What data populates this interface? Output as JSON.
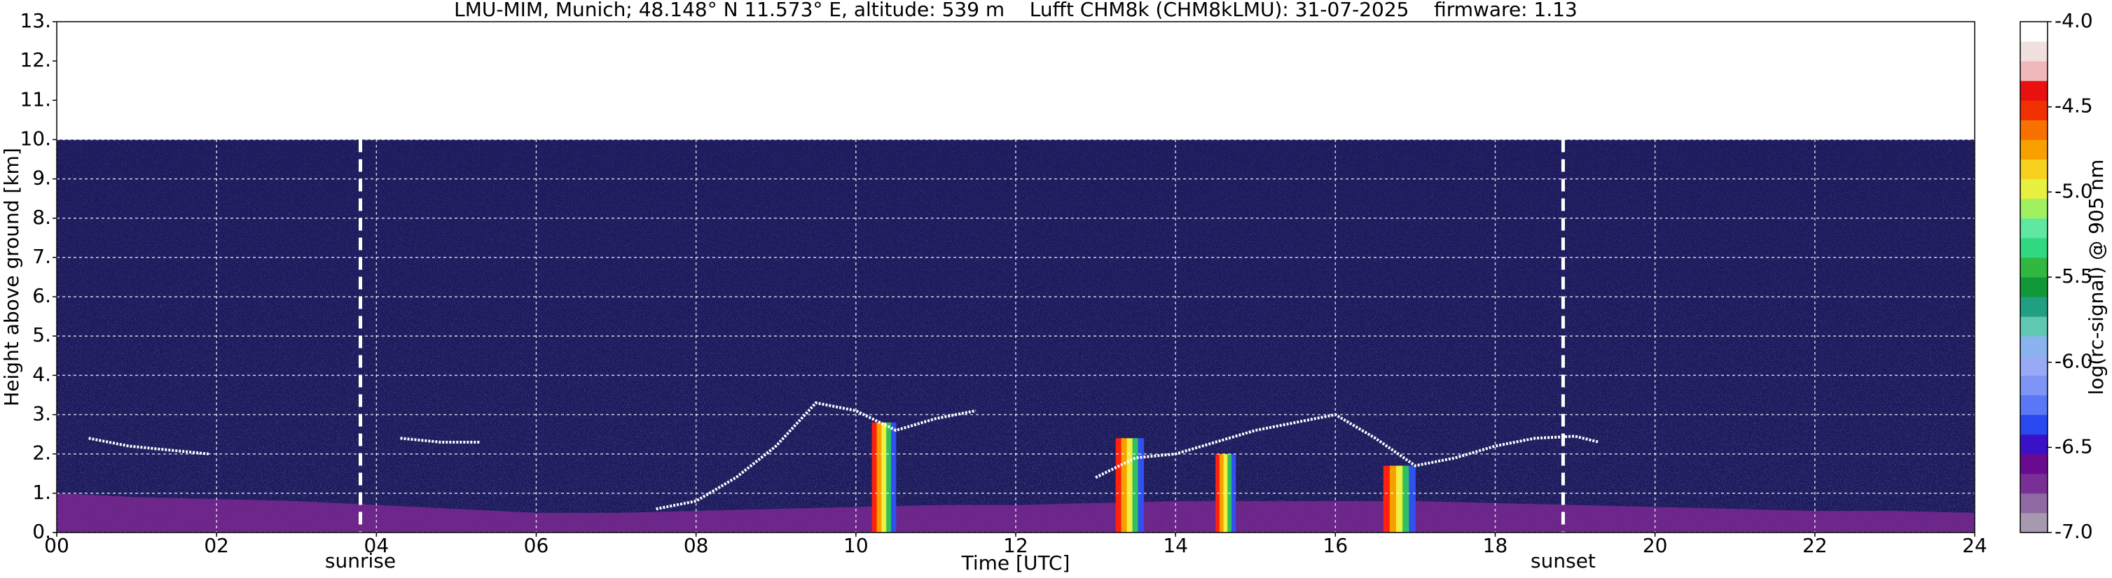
{
  "chart_data": {
    "type": "heatmap",
    "title": "LMU-MIM, Munich; 48.148° N 11.573° E, altitude: 539 m    Lufft CHM8k (CHM8kLMU): 31-07-2025    firmware: 1.13",
    "xlabel": "Time [UTC]",
    "ylabel": "Height above ground [km]",
    "colorbar_label": "log(rc-signal) @ 905 nm",
    "xlim": [
      0,
      24
    ],
    "xticks": [
      {
        "value": 0,
        "label": "00"
      },
      {
        "value": 2,
        "label": "02"
      },
      {
        "value": 4,
        "label": "04"
      },
      {
        "value": 6,
        "label": "06"
      },
      {
        "value": 8,
        "label": "08"
      },
      {
        "value": 10,
        "label": "10"
      },
      {
        "value": 12,
        "label": "12"
      },
      {
        "value": 14,
        "label": "14"
      },
      {
        "value": 16,
        "label": "16"
      },
      {
        "value": 18,
        "label": "18"
      },
      {
        "value": 20,
        "label": "20"
      },
      {
        "value": 22,
        "label": "22"
      },
      {
        "value": 24,
        "label": "24"
      }
    ],
    "ylim": [
      0,
      13
    ],
    "yticks": [
      {
        "value": 0,
        "label": "0."
      },
      {
        "value": 1,
        "label": "1."
      },
      {
        "value": 2,
        "label": "2."
      },
      {
        "value": 3,
        "label": "3."
      },
      {
        "value": 4,
        "label": "4."
      },
      {
        "value": 5,
        "label": "5."
      },
      {
        "value": 6,
        "label": "6."
      },
      {
        "value": 7,
        "label": "7."
      },
      {
        "value": 8,
        "label": "8."
      },
      {
        "value": 9,
        "label": "9."
      },
      {
        "value": 10,
        "label": "10."
      },
      {
        "value": 11,
        "label": "11."
      },
      {
        "value": 12,
        "label": "12."
      },
      {
        "value": 13,
        "label": "13."
      }
    ],
    "grid": true,
    "clim": [
      -7,
      -4
    ],
    "cticks": [
      {
        "value": -4,
        "label": "-4.0"
      },
      {
        "value": -4.5,
        "label": "-4.5"
      },
      {
        "value": -5,
        "label": "-5.0"
      },
      {
        "value": -5.5,
        "label": "-5.5"
      },
      {
        "value": -6,
        "label": "-6.0"
      },
      {
        "value": -6.5,
        "label": "-6.5"
      },
      {
        "value": -7,
        "label": "-7.0"
      }
    ],
    "colorbar_colors": [
      "#a89aae",
      "#8f6aa3",
      "#7a2f97",
      "#6a0a90",
      "#3a10c8",
      "#2848f0",
      "#5a78f5",
      "#7f95f5",
      "#98aaf5",
      "#8ab4f0",
      "#60c8b0",
      "#20a080",
      "#109838",
      "#30b840",
      "#30d880",
      "#60e8a0",
      "#a0f060",
      "#e8f040",
      "#f8d020",
      "#f8a000",
      "#f87000",
      "#f03000",
      "#e81010",
      "#f0b8b8",
      "#f0e0e0",
      "#ffffff"
    ],
    "measurement_top": 10,
    "background_color": "#1c1a5c",
    "aerosol_layer": {
      "color": "#7a2890",
      "x": [
        0,
        1,
        2,
        3,
        4,
        5,
        6,
        7,
        8,
        9,
        10,
        11,
        12,
        13,
        14,
        15,
        16,
        17,
        18,
        19,
        20,
        21,
        22,
        23,
        24
      ],
      "y": [
        1.0,
        0.9,
        0.85,
        0.8,
        0.7,
        0.6,
        0.5,
        0.5,
        0.55,
        0.6,
        0.65,
        0.7,
        0.7,
        0.75,
        0.8,
        0.8,
        0.8,
        0.8,
        0.75,
        0.7,
        0.65,
        0.6,
        0.55,
        0.55,
        0.5
      ]
    },
    "cloud_base": {
      "color": "#ffffff",
      "x": [
        0.4,
        0.9,
        1.4,
        1.9,
        2.4,
        4.3,
        4.8,
        5.3,
        5.8,
        7.5,
        8.0,
        8.5,
        9.0,
        9.5,
        10.0,
        10.5,
        11.0,
        11.5,
        12.0,
        13.0,
        13.5,
        14.0,
        14.5,
        15.0,
        15.5,
        16.0,
        16.5,
        17.0,
        17.5,
        18.0,
        18.5,
        19.0,
        19.3
      ],
      "y": [
        2.4,
        2.2,
        2.1,
        2.0,
        null,
        2.4,
        2.3,
        2.3,
        null,
        0.6,
        0.8,
        1.4,
        2.2,
        3.3,
        3.1,
        2.6,
        2.9,
        3.1,
        null,
        1.4,
        1.9,
        2.0,
        2.3,
        2.6,
        2.8,
        3.0,
        2.4,
        1.7,
        1.9,
        2.2,
        2.4,
        2.45,
        2.3
      ]
    },
    "rain_columns": [
      {
        "x": [
          10.2,
          10.5
        ],
        "top": 2.8
      },
      {
        "x": [
          13.25,
          13.6
        ],
        "top": 2.4
      },
      {
        "x": [
          14.5,
          14.75
        ],
        "top": 2.0
      },
      {
        "x": [
          16.6,
          17.0
        ],
        "top": 1.7
      }
    ],
    "markers": [
      {
        "name": "sunrise",
        "x": 3.8
      },
      {
        "name": "sunset",
        "x": 18.85
      }
    ]
  }
}
